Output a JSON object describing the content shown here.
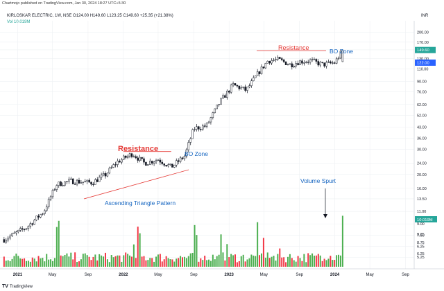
{
  "header": {
    "published": "Chartmojo published on TradingView.com, Jan 30, 2024 18:27 UTC+5:30",
    "symbol_line": "KIRLOSKAR ELECTRIC, 1W, NSE  O124.00  H149.60  L123.25  C149.60  +25.35 (+21.38%)",
    "vol_line": "Vol  10.019M",
    "currency": "INR"
  },
  "footer": {
    "brand": "TradingView"
  },
  "colors": {
    "up": "#26a69a",
    "down": "#ef5350",
    "vol_up": "#4caf50",
    "vol_down": "#f23645",
    "red": "#e53935",
    "blue": "#1565c0",
    "grid": "#eef0f3"
  },
  "chart_data": {
    "type": "candlestick",
    "yscale": "log",
    "ylim": [
      4.5,
      240
    ],
    "y_ticks": [
      "200.00",
      "170.00",
      "150.00",
      "130.00",
      "110.00",
      "90.00",
      "76.00",
      "62.00",
      "52.00",
      "43.00",
      "36.00",
      "30.00",
      "24.00",
      "20.00",
      "16.00",
      "13.50",
      "11.00",
      "9.00",
      "7.50",
      "6.25",
      "5.25"
    ],
    "vol_ticks": [
      "0.25",
      "8.75",
      "6.25"
    ],
    "x_ticks": [
      "2021",
      "May",
      "Sep",
      "2022",
      "May",
      "Sep",
      "2023",
      "May",
      "Sep",
      "2024",
      "May",
      "Sep"
    ],
    "price_tags": [
      {
        "label": "149.60",
        "value": 149.6,
        "color": "#26a69a"
      },
      {
        "label": "122.00",
        "value": 122,
        "color": "#2962ff"
      }
    ],
    "volume_tag": {
      "label": "10.019M",
      "color": "#26a69a"
    },
    "anchors": [
      [
        "2020-11-15",
        7
      ],
      [
        "2021-02-01",
        8.5
      ],
      [
        "2021-04-01",
        11
      ],
      [
        "2021-05-15",
        17
      ],
      [
        "2021-07-01",
        18
      ],
      [
        "2021-09-15",
        17.5
      ],
      [
        "2021-11-01",
        20
      ],
      [
        "2021-12-10",
        24.5
      ],
      [
        "2022-02-01",
        28
      ],
      [
        "2022-03-15",
        24
      ],
      [
        "2022-05-01",
        25.5
      ],
      [
        "2022-06-15",
        22.5
      ],
      [
        "2022-08-01",
        27
      ],
      [
        "2022-09-01",
        42
      ],
      [
        "2022-10-15",
        44
      ],
      [
        "2022-12-01",
        65
      ],
      [
        "2023-01-15",
        85
      ],
      [
        "2023-03-01",
        78
      ],
      [
        "2023-04-10",
        102
      ],
      [
        "2023-05-15",
        126
      ],
      [
        "2023-06-20",
        128
      ],
      [
        "2023-08-01",
        118
      ],
      [
        "2023-09-01",
        124
      ],
      [
        "2023-10-10",
        126
      ],
      [
        "2023-11-20",
        118
      ],
      [
        "2024-01-01",
        122
      ],
      [
        "2024-01-29",
        149.6
      ]
    ],
    "annotations": [
      {
        "text": "Resistance",
        "type": "label",
        "color": "#e53935"
      },
      {
        "text": "BO Zone",
        "type": "label",
        "color": "#1565c0"
      },
      {
        "text": "Ascending Triangle Pattern",
        "type": "label",
        "color": "#1565c0"
      },
      {
        "text": "Resistance",
        "type": "label",
        "color": "#e53935"
      },
      {
        "text": "BO Zone",
        "type": "label",
        "color": "#1565c0"
      },
      {
        "text": "Volume Spurt",
        "type": "label",
        "color": "#1565c0"
      }
    ]
  }
}
